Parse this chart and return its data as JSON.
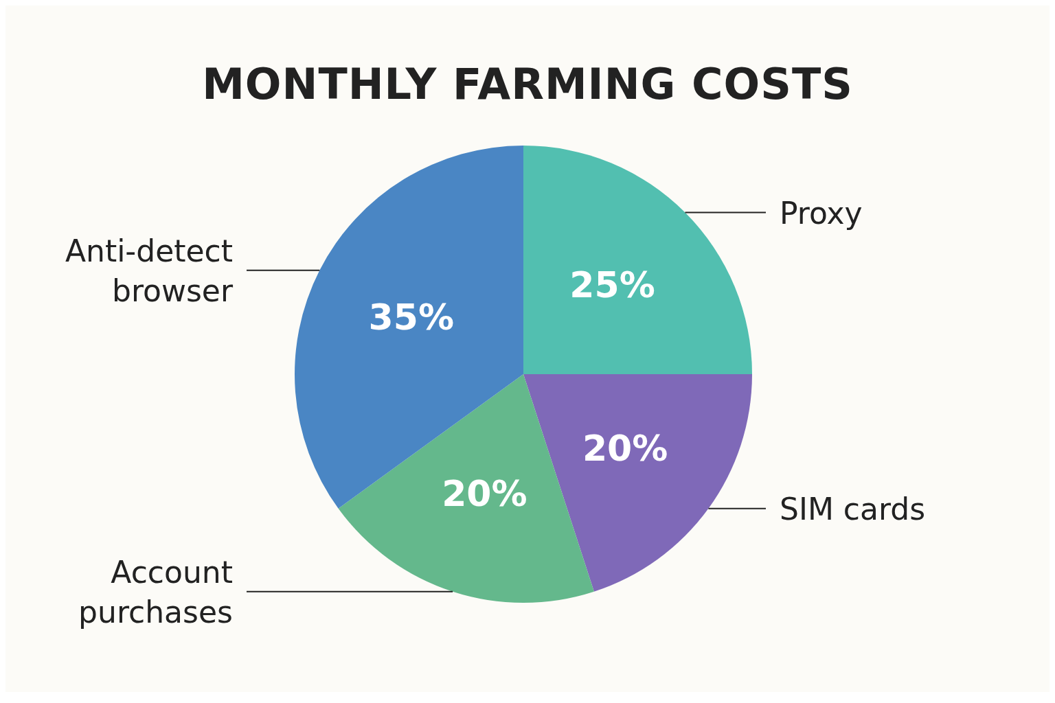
{
  "chart_data": {
    "type": "pie",
    "title": "MONTHLY FARMING COSTS",
    "categories": [
      "Proxy",
      "SIM cards",
      "Account purchases",
      "Anti-detect browser"
    ],
    "values": [
      25,
      20,
      20,
      35
    ],
    "value_labels": [
      "25%",
      "20%",
      "20%",
      "35%"
    ],
    "colors": [
      "#52bfb0",
      "#7f69b8",
      "#64b88c",
      "#4a86c4"
    ]
  }
}
